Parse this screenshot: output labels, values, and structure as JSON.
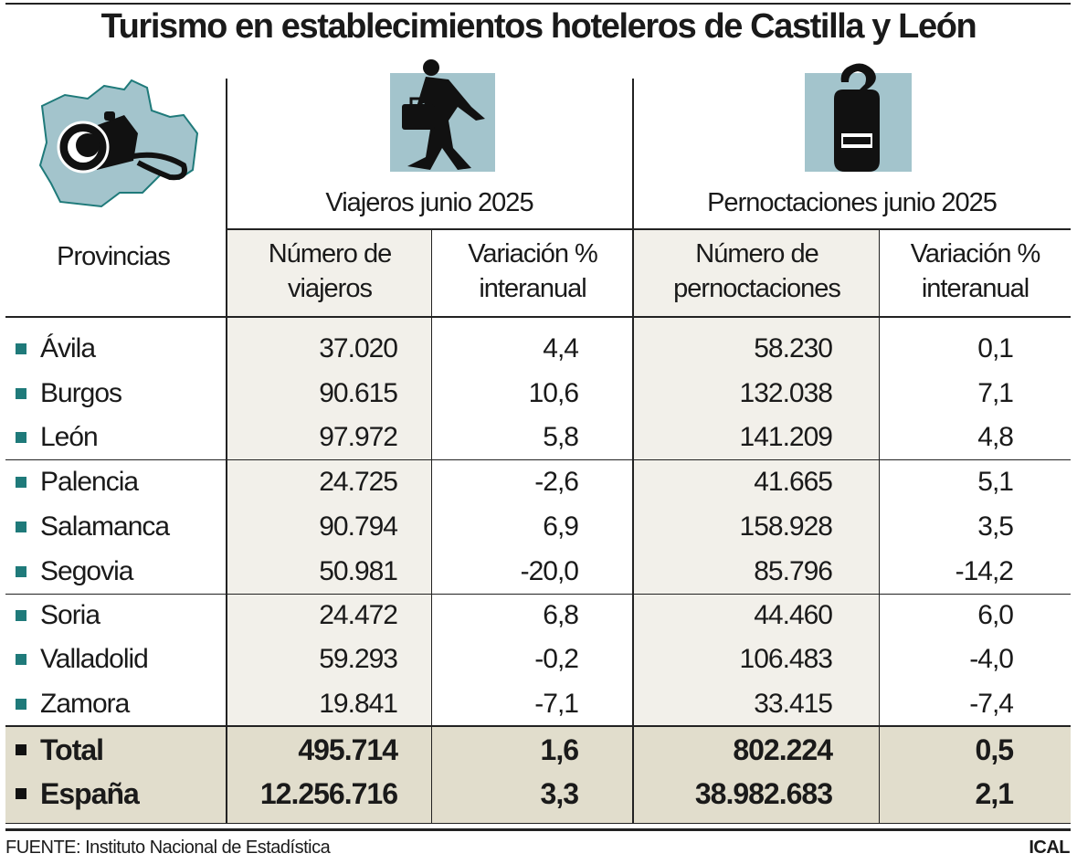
{
  "title": "Turismo en establecimientos hoteleros de Castilla y León",
  "colors": {
    "accent_teal": "#1f7a7a",
    "icon_bg": "#a3c4cc",
    "shade_col": "#f2f0ea",
    "total_bg": "#e1ddcc"
  },
  "icons": {
    "region": "castilla-y-leon-map-camera-icon",
    "travelers": "walking-traveler-icon",
    "overnights": "door-hanger-bed-icon"
  },
  "header": {
    "provinces": "Provincias",
    "group1": "Viajeros junio 2025",
    "group2": "Pernoctaciones junio 2025",
    "col1": [
      "Número de",
      "viajeros"
    ],
    "col2": [
      "Variación %",
      "interanual"
    ],
    "col3": [
      "Número de",
      "pernoctaciones"
    ],
    "col4": [
      "Variación %",
      "interanual"
    ]
  },
  "rows": [
    {
      "name": "Ávila",
      "viajeros": "37.020",
      "var_viajeros": "4,4",
      "pernoctaciones": "58.230",
      "var_pernoctaciones": "0,1"
    },
    {
      "name": "Burgos",
      "viajeros": "90.615",
      "var_viajeros": "10,6",
      "pernoctaciones": "132.038",
      "var_pernoctaciones": "7,1"
    },
    {
      "name": "León",
      "viajeros": "97.972",
      "var_viajeros": "5,8",
      "pernoctaciones": "141.209",
      "var_pernoctaciones": "4,8"
    },
    {
      "name": "Palencia",
      "viajeros": "24.725",
      "var_viajeros": "-2,6",
      "pernoctaciones": "41.665",
      "var_pernoctaciones": "5,1"
    },
    {
      "name": "Salamanca",
      "viajeros": "90.794",
      "var_viajeros": "6,9",
      "pernoctaciones": "158.928",
      "var_pernoctaciones": "3,5"
    },
    {
      "name": "Segovia",
      "viajeros": "50.981",
      "var_viajeros": "-20,0",
      "pernoctaciones": "85.796",
      "var_pernoctaciones": "-14,2"
    },
    {
      "name": "Soria",
      "viajeros": "24.472",
      "var_viajeros": "6,8",
      "pernoctaciones": "44.460",
      "var_pernoctaciones": "6,0"
    },
    {
      "name": "Valladolid",
      "viajeros": "59.293",
      "var_viajeros": "-0,2",
      "pernoctaciones": "106.483",
      "var_pernoctaciones": "-4,0"
    },
    {
      "name": "Zamora",
      "viajeros": "19.841",
      "var_viajeros": "-7,1",
      "pernoctaciones": "33.415",
      "var_pernoctaciones": "-7,4"
    }
  ],
  "totals": [
    {
      "name": "Total",
      "viajeros": "495.714",
      "var_viajeros": "1,6",
      "pernoctaciones": "802.224",
      "var_pernoctaciones": "0,5"
    },
    {
      "name": "España",
      "viajeros": "12.256.716",
      "var_viajeros": "3,3",
      "pernoctaciones": "38.982.683",
      "var_pernoctaciones": "2,1"
    }
  ],
  "footer": {
    "source": "FUENTE: Instituto Nacional de Estadística",
    "credit": "ICAL"
  }
}
